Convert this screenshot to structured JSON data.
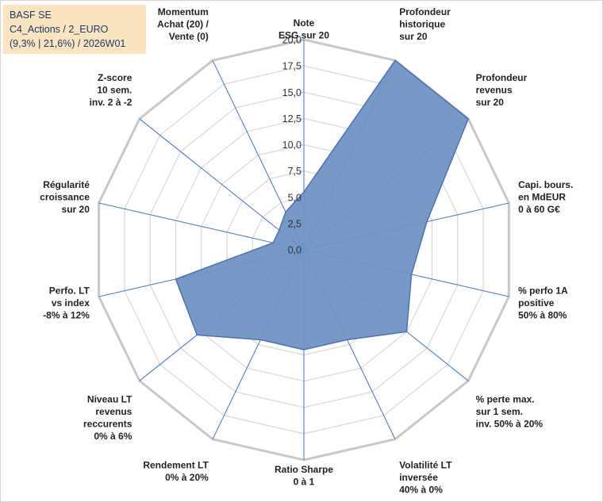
{
  "title_box": {
    "line1": "BASF SE",
    "line2": "C4_Actions / 2_EURO",
    "line3": "(9,3% | 21,6%) / 2026W01"
  },
  "chart_data": {
    "type": "radar",
    "title": "BASF SE",
    "range": [
      0,
      20
    ],
    "tick_step": 2.5,
    "tick_labels": [
      "0,0",
      "2,5",
      "5,0",
      "7,5",
      "10,0",
      "12,5",
      "15,0",
      "17,5",
      "20,0"
    ],
    "grid": true,
    "fill_color": "#6f93c4",
    "line_color": "#4f72ad",
    "axes": [
      {
        "label": [
          "Note",
          "ESG sur 20"
        ],
        "value": 5.5
      },
      {
        "label": [
          "Profondeur",
          "historique",
          "sur 20"
        ],
        "value": 20.0
      },
      {
        "label": [
          "Profondeur",
          "revenus",
          "sur 20"
        ],
        "value": 20.0
      },
      {
        "label": [
          "Capi. bours.",
          "en MdEUR",
          "0 à 60 G€"
        ],
        "value": 12.0
      },
      {
        "label": [
          "% perfo 1A",
          "positive",
          "50% à 80%"
        ],
        "value": 10.5
      },
      {
        "label": [
          "% perte max.",
          "sur 1 sem.",
          "inv. 50% à 20%"
        ],
        "value": 12.5
      },
      {
        "label": [
          "Volatilité LT",
          "inversée",
          "40% à 0%"
        ],
        "value": 9.5
      },
      {
        "label": [
          "Ratio Sharpe",
          "0 à 1"
        ],
        "value": 9.5
      },
      {
        "label": [
          "Rendement LT",
          "0% à 20%"
        ],
        "value": 9.5
      },
      {
        "label": [
          "Niveau LT",
          "revenus",
          "reccurents",
          "0% à 6%"
        ],
        "value": 13.0
      },
      {
        "label": [
          "Perfo. LT",
          "vs index",
          "-8% à 12%"
        ],
        "value": 12.5
      },
      {
        "label": [
          "Régularité",
          "croissance",
          "sur 20"
        ],
        "value": 3.0
      },
      {
        "label": [
          "Z-score",
          "10 sem.",
          "inv. 2 à -2"
        ],
        "value": 3.0
      },
      {
        "label": [
          "Momentum",
          "Achat (20) /",
          "Vente (0)"
        ],
        "value": 4.0
      }
    ]
  }
}
